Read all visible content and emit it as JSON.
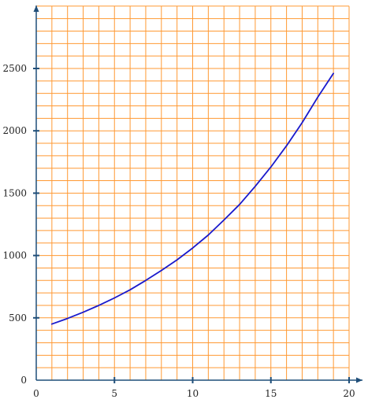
{
  "chart_data": {
    "type": "line",
    "title": "",
    "xlabel": "",
    "ylabel": "",
    "xlim": [
      0,
      20
    ],
    "ylim": [
      0,
      3000
    ],
    "x_ticks": [
      0,
      5,
      10,
      15,
      20
    ],
    "y_ticks": [
      0,
      500,
      1000,
      1500,
      2000,
      2500
    ],
    "x_tick_labels": [
      "0",
      "5",
      "10",
      "15",
      "20"
    ],
    "y_tick_labels": [
      "0",
      "500",
      "1000",
      "1500",
      "2000",
      "2500"
    ],
    "grid": true,
    "x_grid_step": 1,
    "y_grid_step": 100,
    "series": [
      {
        "x": [
          1,
          2,
          3,
          4,
          5,
          6,
          7,
          8,
          9,
          10,
          11,
          12,
          13,
          14,
          15,
          16,
          17,
          18,
          19
        ],
        "values": [
          450,
          495,
          545,
          600,
          660,
          725,
          800,
          880,
          965,
          1060,
          1165,
          1285,
          1410,
          1555,
          1710,
          1880,
          2065,
          2270,
          2460
        ]
      }
    ],
    "colors": {
      "grid": "#ff9933",
      "axis": "#1f4e79",
      "line": "#1a1acc"
    }
  }
}
